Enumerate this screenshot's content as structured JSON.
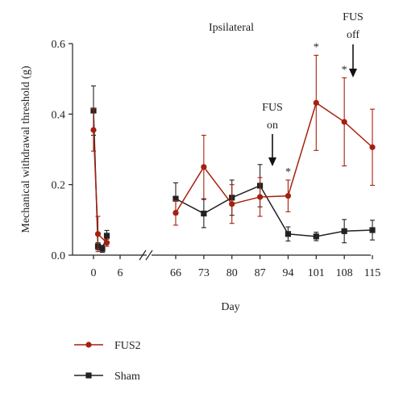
{
  "chart_data": {
    "type": "line",
    "title": "Ipsilateral",
    "xlabel": "Day",
    "ylabel": "Mechanical withdrawal threshold (g)",
    "ylim": [
      0,
      0.6
    ],
    "yticks": [
      "0.0",
      "0.2",
      "0.4",
      "0.6"
    ],
    "x_left_ticks": [
      "0",
      "6"
    ],
    "x_right_ticks": [
      "66",
      "73",
      "80",
      "87",
      "94",
      "101",
      "108",
      "115"
    ],
    "legend_position": "bottom-left",
    "series": [
      {
        "name": "FUS2",
        "color": "#a5200e",
        "marker": "circle",
        "left_x": [
          0,
          1,
          3
        ],
        "left_y": [
          0.355,
          0.06,
          0.035
        ],
        "left_err": [
          0.06,
          0.05,
          0.01
        ],
        "right_x": [
          66,
          73,
          80,
          87,
          94,
          101,
          108,
          115
        ],
        "right_y": [
          0.12,
          0.25,
          0.145,
          0.165,
          0.168,
          0.432,
          0.378,
          0.306
        ],
        "right_err": [
          0.035,
          0.09,
          0.055,
          0.055,
          0.045,
          0.135,
          0.125,
          0.108
        ]
      },
      {
        "name": "Sham",
        "color": "#222222",
        "marker": "square",
        "left_x": [
          0,
          1,
          2,
          3
        ],
        "left_y": [
          0.41,
          0.025,
          0.018,
          0.055
        ],
        "left_err": [
          0.07,
          0.01,
          0.01,
          0.015
        ],
        "right_x": [
          66,
          73,
          80,
          87,
          94,
          101,
          108,
          115
        ],
        "right_y": [
          0.16,
          0.118,
          0.163,
          0.197,
          0.06,
          0.053,
          0.068,
          0.071
        ],
        "right_err": [
          0.045,
          0.04,
          0.05,
          0.06,
          0.02,
          0.012,
          0.033,
          0.028
        ]
      }
    ],
    "annotations": {
      "fus_on": [
        "FUS",
        "on"
      ],
      "fus_off": [
        "FUS",
        "off"
      ],
      "significance_mark": "*",
      "significant_days": [
        94,
        101,
        108
      ]
    }
  }
}
